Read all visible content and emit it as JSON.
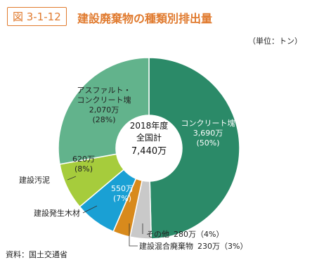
{
  "chart_data": {
    "type": "donut",
    "figure_label": "図 3-1-12",
    "title": "建設廃棄物の種類別排出量",
    "unit": "（単位：トン）",
    "source": "資料：国土交通省",
    "center": {
      "year": "2018年度",
      "label": "全国計",
      "total": "7,440万"
    },
    "categories": [
      "コンクリート塊",
      "その他",
      "建設混合廃棄物",
      "建設発生木材",
      "建設汚泥",
      "アスファルト・\nコンクリート塊"
    ],
    "values": [
      3690,
      280,
      230,
      550,
      620,
      2070
    ],
    "value_labels": [
      "3,690万",
      "280万",
      "230万",
      "550万",
      "620万",
      "2,070万"
    ],
    "percentages": [
      50,
      4,
      3,
      7,
      8,
      28
    ],
    "percent_labels": [
      "(50%)",
      "（4%）",
      "（3%）",
      "(7%)",
      "(8%)",
      "(28%)"
    ],
    "colors": [
      "#2b8a68",
      "#c9c9c9",
      "#d88a1c",
      "#1aa0d4",
      "#a6cc3c",
      "#62b38c"
    ]
  }
}
